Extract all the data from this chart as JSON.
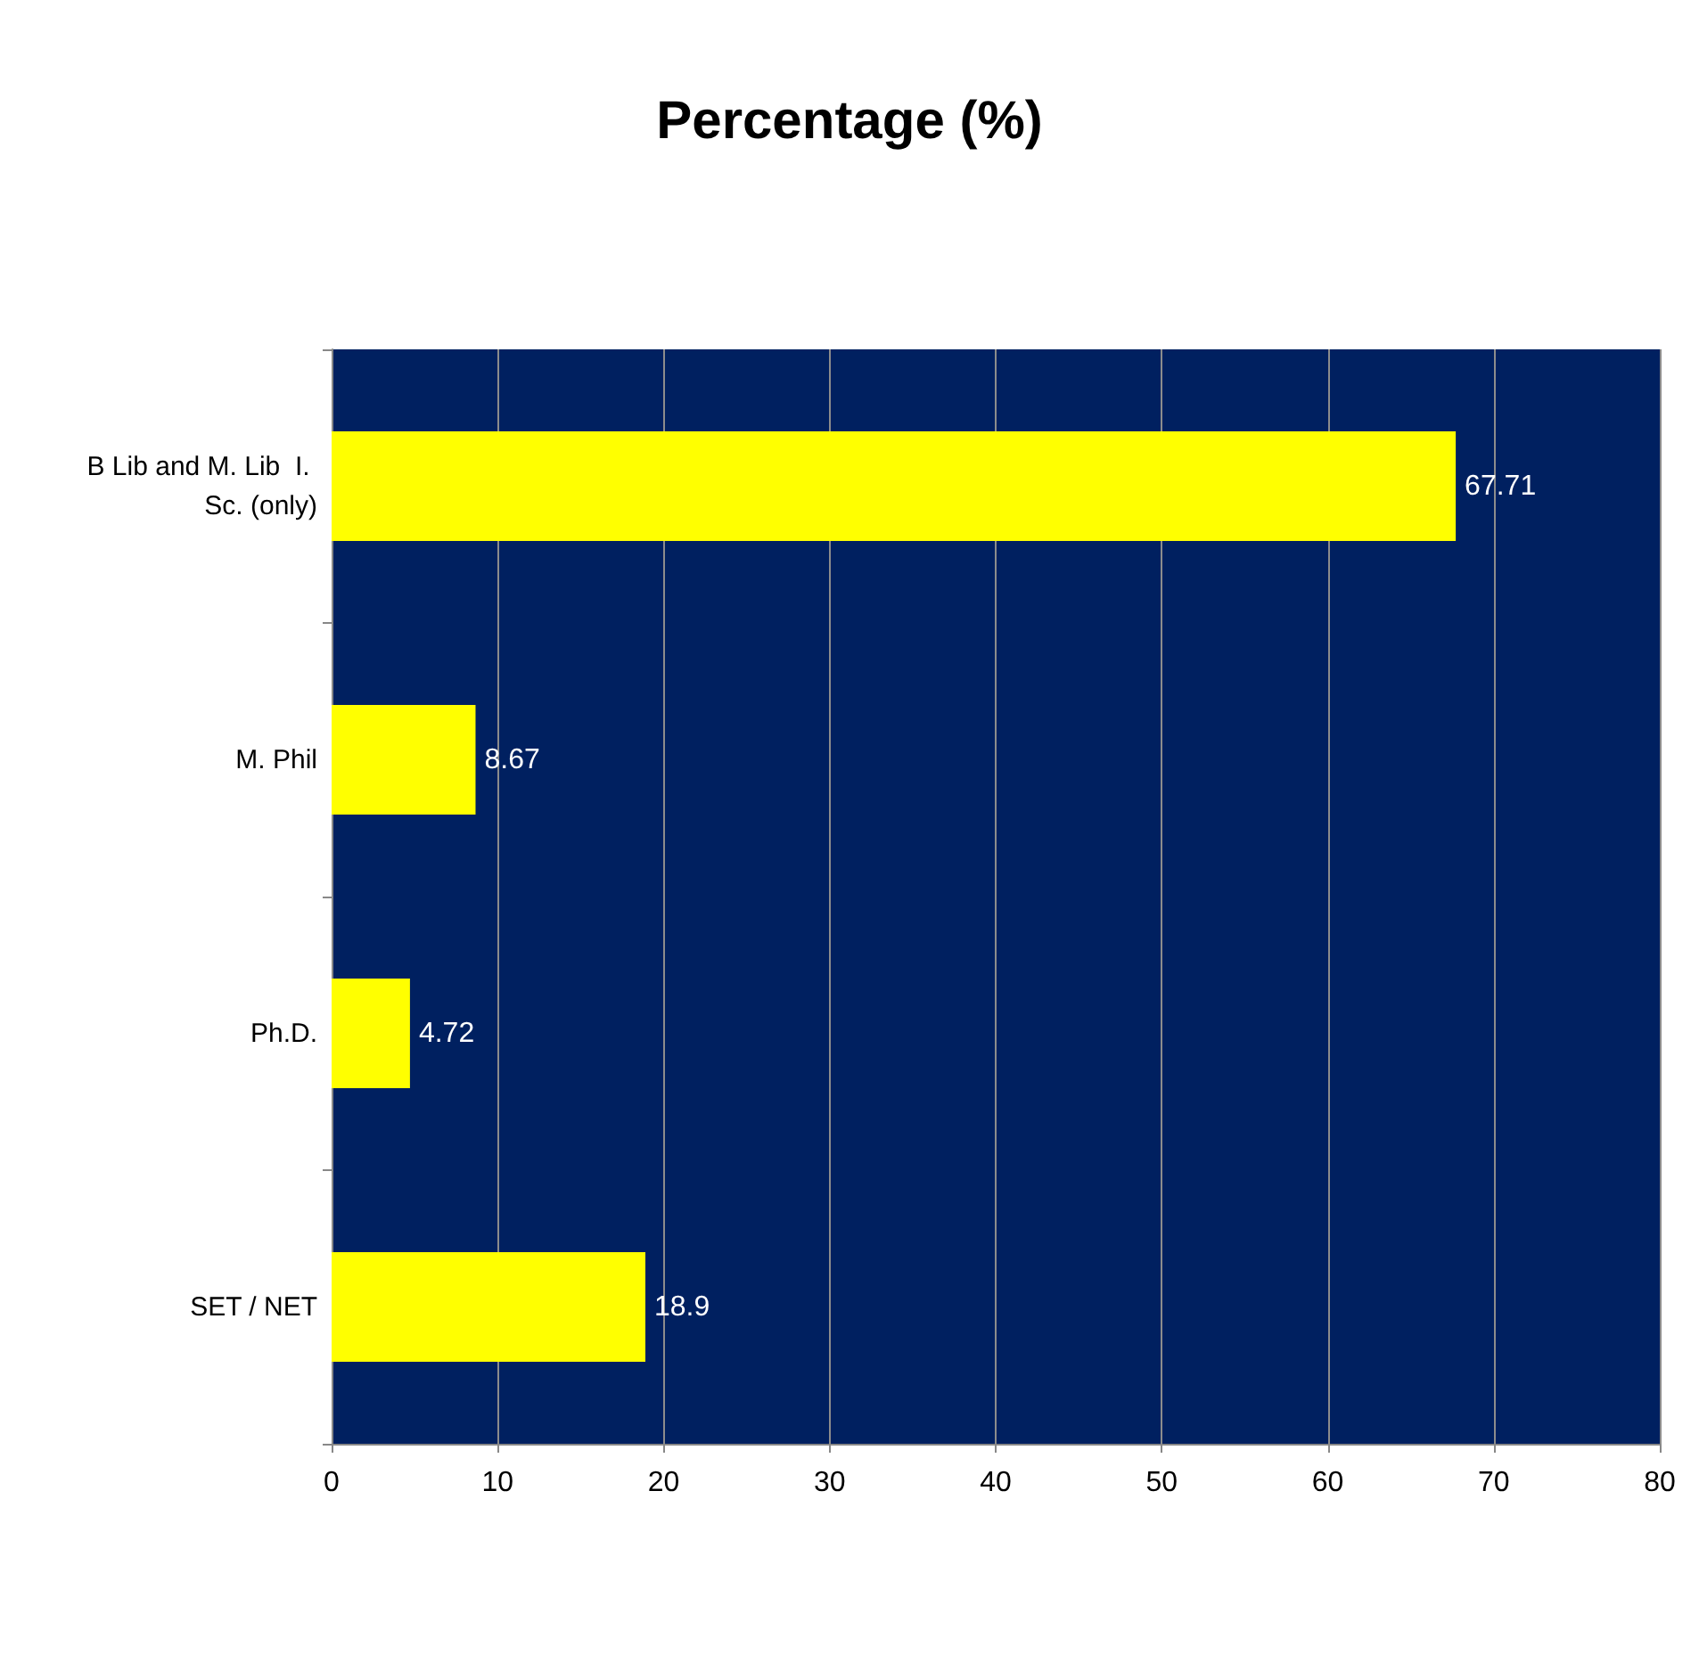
{
  "chart_data": {
    "type": "bar",
    "orientation": "horizontal",
    "title": "Percentage (%)",
    "categories": [
      "B Lib and M. Lib  I. Sc. (only)",
      "M. Phil",
      "Ph.D.",
      "SET / NET"
    ],
    "values": [
      67.71,
      8.67,
      4.72,
      18.9
    ],
    "color": "#ffff00",
    "xlim": [
      0,
      80
    ],
    "xticks": [
      0,
      10,
      20,
      30,
      40,
      50,
      60,
      70,
      80
    ],
    "grid": "x",
    "data_labels": true
  }
}
